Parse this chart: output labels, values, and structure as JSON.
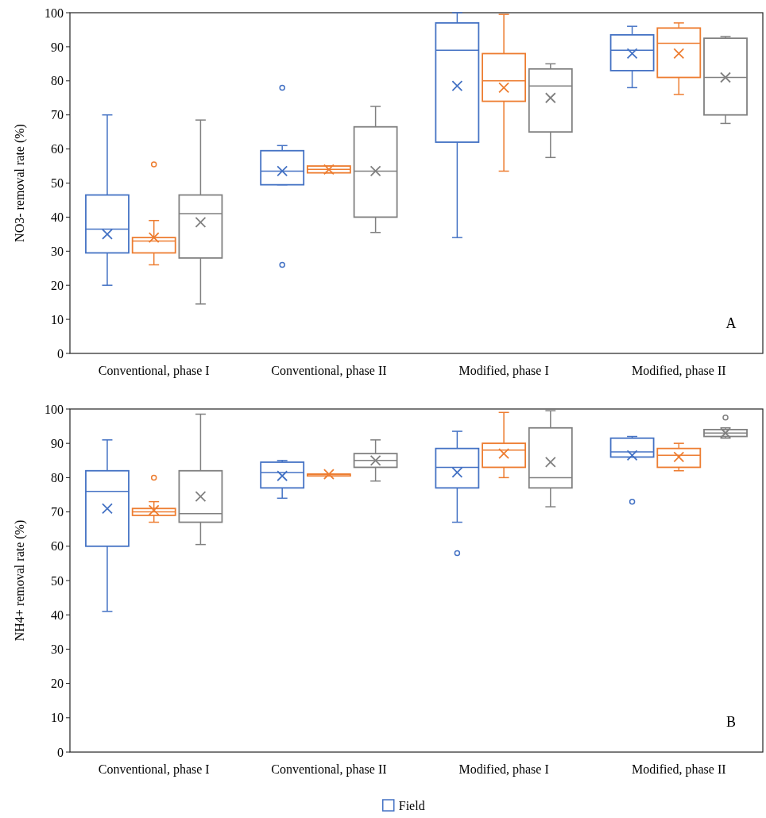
{
  "chart_data": [
    {
      "type": "box",
      "ylabel": "NO3- removal rate (%)",
      "categories": [
        "Conventional, phase I",
        "Conventional, phase II",
        "Modified, phase I",
        "Modified, phase II"
      ],
      "ylim": [
        0,
        100
      ],
      "yticks": [
        0,
        10,
        20,
        30,
        40,
        50,
        60,
        70,
        80,
        90,
        100
      ],
      "grid": false,
      "annotations": [
        "A"
      ],
      "series": [
        {
          "color": "#4472c4",
          "boxes": [
            {
              "low": 20,
              "q1": 29.5,
              "median": 36.5,
              "q3": 46.5,
              "high": 70,
              "mean": 35
            },
            {
              "low": 49.5,
              "q1": 49.5,
              "median": 53.5,
              "q3": 59.5,
              "high": 61,
              "mean": 53.5,
              "outliers": [
                78,
                26
              ]
            },
            {
              "low": 34,
              "q1": 62,
              "median": 89,
              "q3": 97,
              "high": 100,
              "mean": 78.5
            },
            {
              "low": 78,
              "q1": 83,
              "median": 89,
              "q3": 93.5,
              "high": 96,
              "mean": 88
            }
          ]
        },
        {
          "color": "#ed7d31",
          "boxes": [
            {
              "low": 26,
              "q1": 29.5,
              "median": 33,
              "q3": 34,
              "high": 39,
              "mean": 34,
              "outliers": [
                55.5
              ]
            },
            {
              "low": 53,
              "q1": 53,
              "median": 54,
              "q3": 55,
              "high": 55,
              "mean": 54
            },
            {
              "low": 53.5,
              "q1": 74,
              "median": 80,
              "q3": 88,
              "high": 99.5,
              "mean": 78
            },
            {
              "low": 76,
              "q1": 81,
              "median": 91,
              "q3": 95.5,
              "high": 97,
              "mean": 88
            }
          ]
        },
        {
          "color": "#808080",
          "boxes": [
            {
              "low": 14.5,
              "q1": 28,
              "median": 41,
              "q3": 46.5,
              "high": 68.5,
              "mean": 38.5
            },
            {
              "low": 35.5,
              "q1": 40,
              "median": 53.5,
              "q3": 66.5,
              "high": 72.5,
              "mean": 53.5
            },
            {
              "low": 57.5,
              "q1": 65,
              "median": 78.5,
              "q3": 83.5,
              "high": 85,
              "mean": 75
            },
            {
              "low": 67.5,
              "q1": 70,
              "median": 81,
              "q3": 92.5,
              "high": 93,
              "mean": 81
            }
          ]
        }
      ]
    },
    {
      "type": "box",
      "ylabel": "NH4+ removal rate (%)",
      "categories": [
        "Conventional, phase I",
        "Conventional, phase II",
        "Modified, phase I",
        "Modified, phase II"
      ],
      "ylim": [
        0,
        100
      ],
      "yticks": [
        0,
        10,
        20,
        30,
        40,
        50,
        60,
        70,
        80,
        90,
        100
      ],
      "grid": false,
      "legend": "bottom",
      "annotations": [
        "B"
      ],
      "series": [
        {
          "name": "Field",
          "color": "#4472c4",
          "boxes": [
            {
              "low": 41,
              "q1": 60,
              "median": 76,
              "q3": 82,
              "high": 91,
              "mean": 71
            },
            {
              "low": 74,
              "q1": 77,
              "median": 81.5,
              "q3": 84.5,
              "high": 85,
              "mean": 80.5
            },
            {
              "low": 67,
              "q1": 77,
              "median": 83,
              "q3": 88.5,
              "high": 93.5,
              "mean": 81.5,
              "outliers": [
                58
              ]
            },
            {
              "low": 86,
              "q1": 86,
              "median": 87.5,
              "q3": 91.5,
              "high": 92,
              "mean": 86.5,
              "outliers": [
                73
              ]
            }
          ]
        },
        {
          "color": "#ed7d31",
          "boxes": [
            {
              "low": 67,
              "q1": 69,
              "median": 70,
              "q3": 71,
              "high": 73,
              "mean": 70.5,
              "outliers": [
                80
              ]
            },
            {
              "low": 80.5,
              "q1": 80.5,
              "median": 81,
              "q3": 81,
              "high": 81,
              "mean": 81
            },
            {
              "low": 80,
              "q1": 83,
              "median": 88,
              "q3": 90,
              "high": 99,
              "mean": 87
            },
            {
              "low": 82,
              "q1": 83,
              "median": 86.5,
              "q3": 88.5,
              "high": 90,
              "mean": 86
            }
          ]
        },
        {
          "color": "#808080",
          "boxes": [
            {
              "low": 60.5,
              "q1": 67,
              "median": 69.5,
              "q3": 82,
              "high": 98.5,
              "mean": 74.5
            },
            {
              "low": 79,
              "q1": 83,
              "median": 85,
              "q3": 87,
              "high": 91,
              "mean": 85
            },
            {
              "low": 71.5,
              "q1": 77,
              "median": 80,
              "q3": 94.5,
              "high": 99.5,
              "mean": 84.5
            },
            {
              "low": 91.5,
              "q1": 92,
              "median": 93,
              "q3": 94,
              "high": 94.5,
              "mean": 93,
              "outliers": [
                97.5
              ]
            }
          ]
        }
      ]
    }
  ]
}
